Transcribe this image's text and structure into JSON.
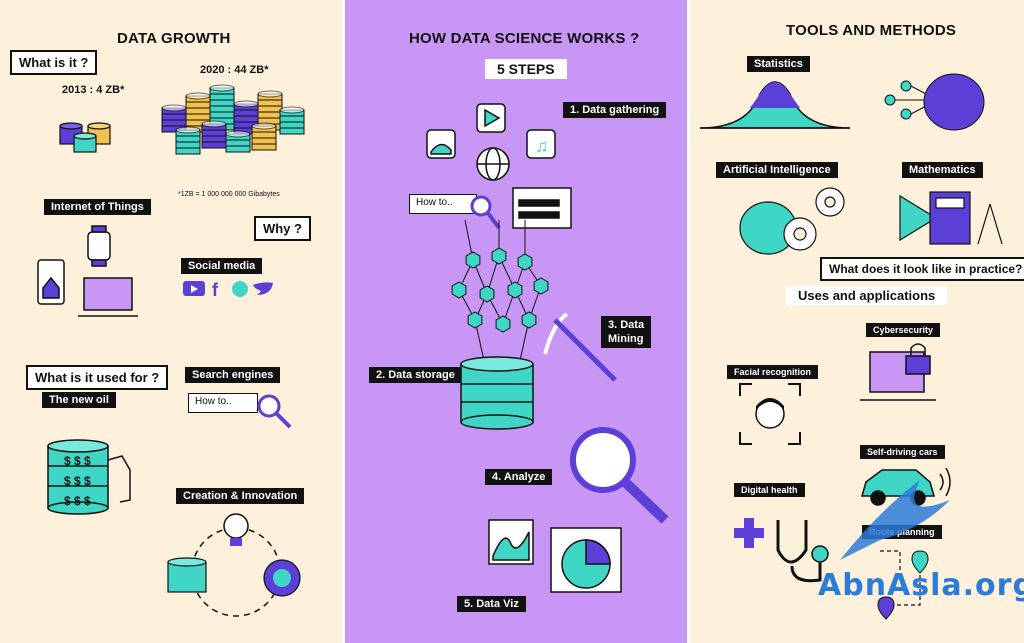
{
  "left": {
    "title": "DATA GROWTH",
    "what_is_it": "What is it ?",
    "label_2013": "2013 : 4 ZB*",
    "label_2020": "2020 : 44 ZB*",
    "footnote": "*1ZB = 1 000 000 000 Gibabytes",
    "iot": "Internet of Things",
    "why": "Why ?",
    "social_media": "Social media",
    "what_used_for": "What is it used for ?",
    "new_oil": "The new oil",
    "search_engines": "Search engines",
    "search_placeholder": "How to..",
    "creation": "Creation & Innovation",
    "dollar": "$ $ $"
  },
  "middle": {
    "title": "HOW DATA SCIENCE WORKS ?",
    "steps": "5 STEPS",
    "step1": "1.  Data gathering",
    "step2": "2. Data storage",
    "step3": "3. Data\nMining",
    "step4": "4. Analyze",
    "step5": "5. Data Viz",
    "search_placeholder": "How to.."
  },
  "right": {
    "title": "TOOLS AND METHODS",
    "statistics": "Statistics",
    "ai": "Artificial Intelligence",
    "mathematics": "Mathematics",
    "practice": "What does it look like in practice?",
    "uses": "Uses and applications",
    "cybersecurity": "Cybersecurity",
    "facial": "Facial recognition",
    "self_driving": "Self-driving cars",
    "digital_health": "Digital health",
    "route_planning": "Route planning"
  },
  "watermark": "AbnAsla.org",
  "colors": {
    "purple": "#c896f4",
    "indigo": "#5b3fd6",
    "teal": "#3fd6c6",
    "gold": "#f2c14e",
    "cream": "#fdf1dc"
  }
}
